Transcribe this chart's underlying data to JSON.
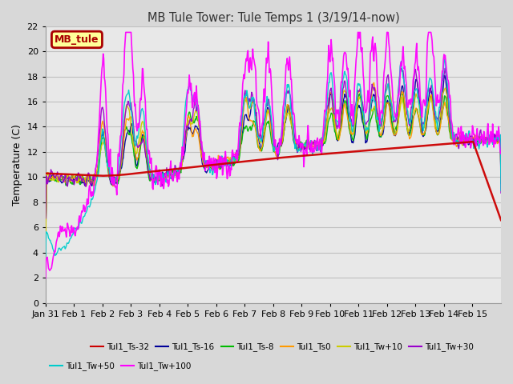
{
  "title": "MB Tule Tower: Tule Temps 1 (3/19/14-now)",
  "ylabel": "Temperature (C)",
  "ylim": [
    0,
    22
  ],
  "yticks": [
    0,
    2,
    4,
    6,
    8,
    10,
    12,
    14,
    16,
    18,
    20,
    22
  ],
  "bg_color": "#d8d8d8",
  "plot_bg_color": "#e8e8e8",
  "grid_color": "#c8c8c8",
  "legend_label": "MB_tule",
  "legend_bg": "#ffff99",
  "legend_border": "#aa0000",
  "series": [
    {
      "label": "Tul1_Ts-32",
      "color": "#cc0000",
      "lw": 1.8,
      "zorder": 10
    },
    {
      "label": "Tul1_Ts-16",
      "color": "#000099",
      "lw": 1.0,
      "zorder": 5
    },
    {
      "label": "Tul1_Ts-8",
      "color": "#00bb00",
      "lw": 1.0,
      "zorder": 5
    },
    {
      "label": "Tul1_Ts0",
      "color": "#ff9900",
      "lw": 1.0,
      "zorder": 5
    },
    {
      "label": "Tul1_Tw+10",
      "color": "#cccc00",
      "lw": 1.0,
      "zorder": 5
    },
    {
      "label": "Tul1_Tw+30",
      "color": "#9900cc",
      "lw": 1.0,
      "zorder": 5
    },
    {
      "label": "Tul1_Tw+50",
      "color": "#00cccc",
      "lw": 1.0,
      "zorder": 6
    },
    {
      "label": "Tul1_Tw+100",
      "color": "#ff00ff",
      "lw": 1.2,
      "zorder": 7
    }
  ],
  "xtick_labels": [
    "Jan 31",
    "Feb 1",
    "Feb 2",
    "Feb 3",
    "Feb 4",
    "Feb 5",
    "Feb 6",
    "Feb 7",
    "Feb 8",
    "Feb 9",
    "Feb 10",
    "Feb 11",
    "Feb 12",
    "Feb 13",
    "Feb 14",
    "Feb 15"
  ]
}
